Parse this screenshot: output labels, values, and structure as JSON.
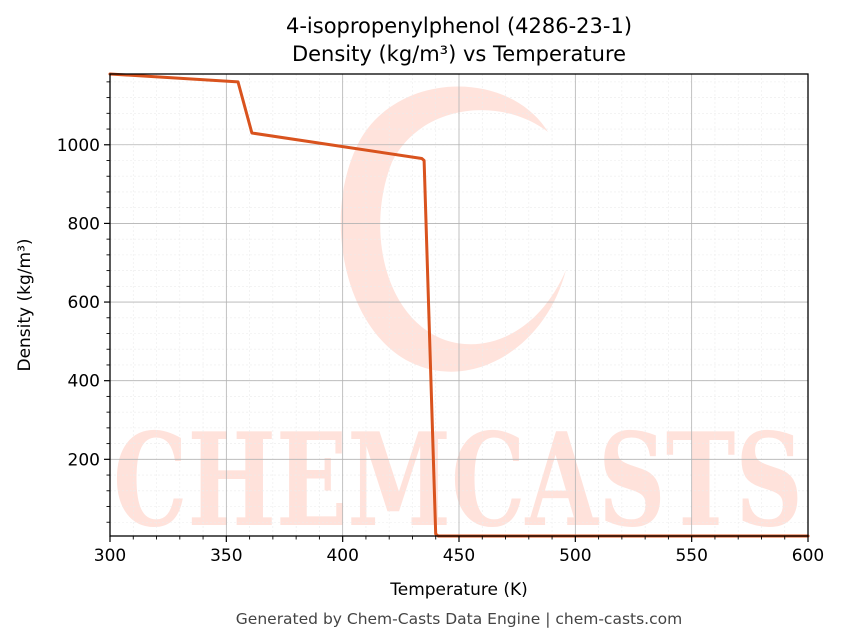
{
  "chart_data": {
    "type": "line",
    "title": "4-isopropenylphenol (4286-23-1)",
    "subtitle": "Density (kg/m³) vs Temperature",
    "xlabel": "Temperature (K)",
    "ylabel": "Density (kg/m³)",
    "xlim": [
      300,
      600
    ],
    "ylim": [
      5,
      1180
    ],
    "xticks": [
      300,
      350,
      400,
      450,
      500,
      550,
      600
    ],
    "yticks": [
      200,
      400,
      600,
      800,
      1000
    ],
    "grid": true,
    "series": [
      {
        "color": "#d9531e",
        "x": [
          300,
          355,
          361,
          434,
          435,
          440,
          441,
          600
        ],
        "y": [
          1180,
          1160,
          1030,
          965,
          960,
          10,
          5,
          5
        ]
      }
    ]
  },
  "footer": "Generated by Chem-Casts Data Engine | chem-casts.com",
  "watermark": "CHEMCASTS"
}
